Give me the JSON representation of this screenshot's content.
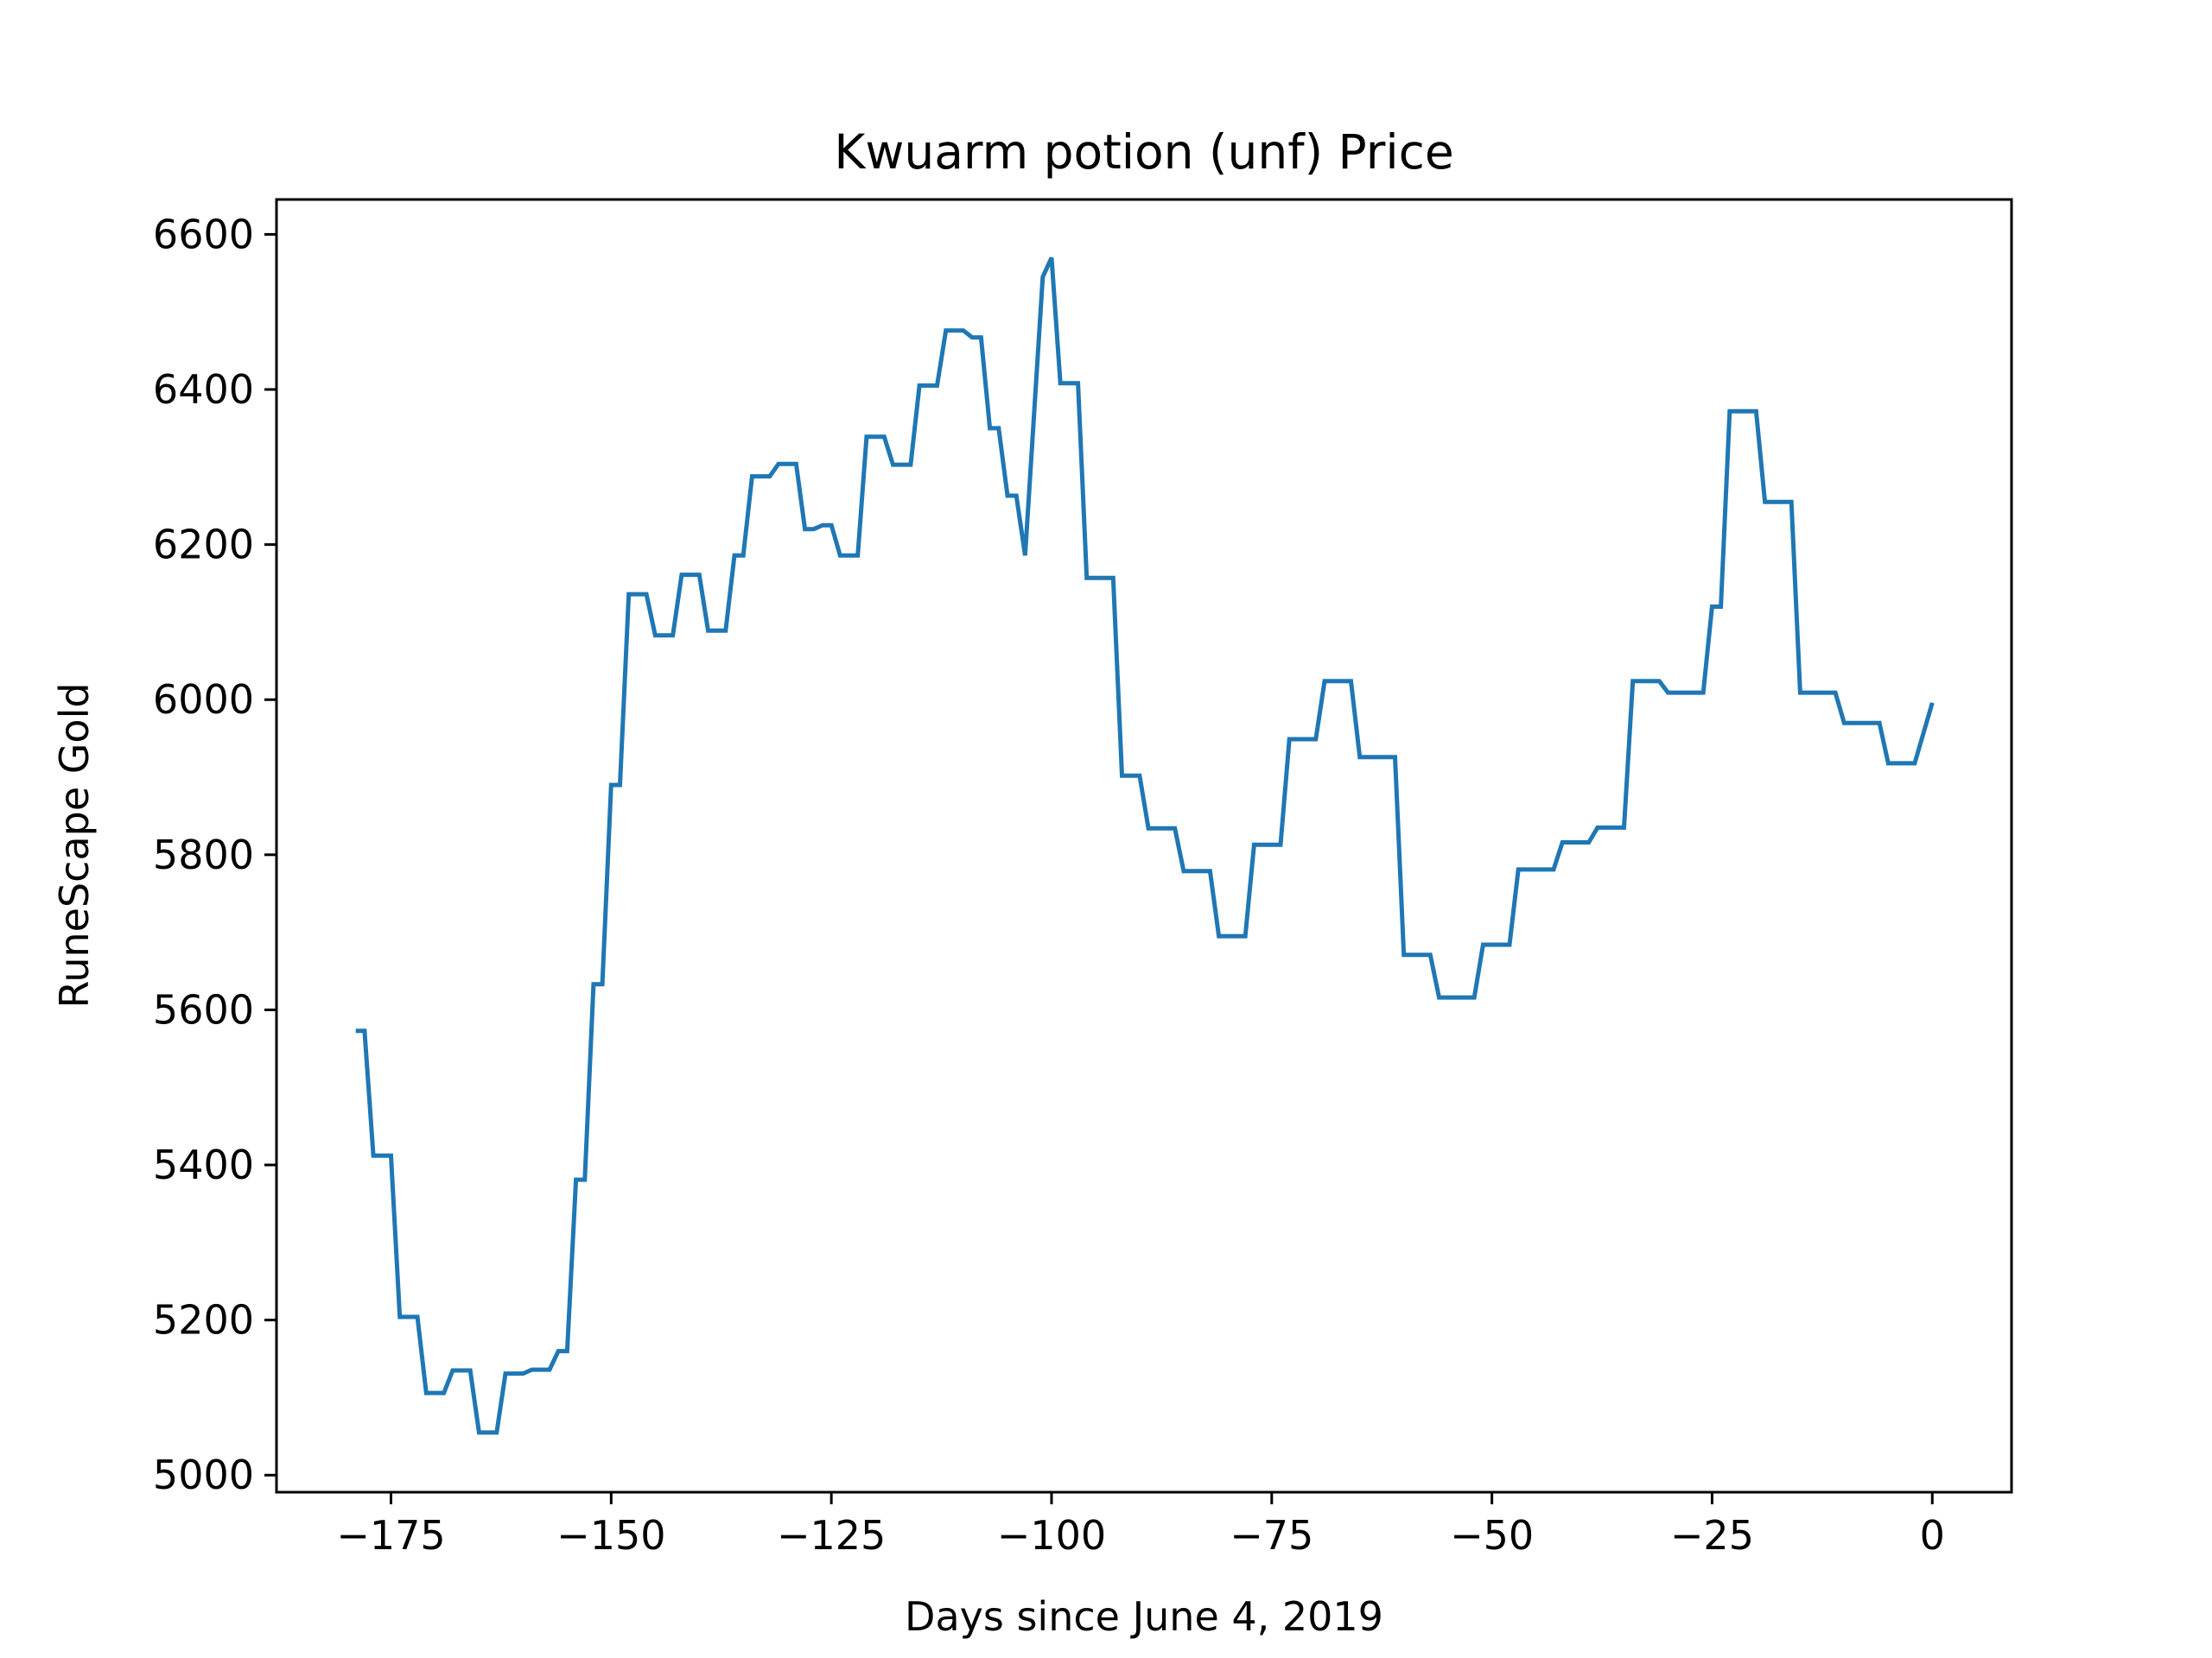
{
  "chart_data": {
    "type": "line",
    "title": "Kwuarm potion (unf) Price",
    "xlabel": "Days since June 4, 2019",
    "ylabel": "RuneScape Gold",
    "xlim": [
      -188,
      9
    ],
    "ylim": [
      4978,
      6645
    ],
    "xticks": [
      -175,
      -150,
      -125,
      -100,
      -75,
      -50,
      -25,
      0
    ],
    "xtick_labels": [
      "−175",
      "−150",
      "−125",
      "−100",
      "−75",
      "−50",
      "−25",
      "0"
    ],
    "yticks": [
      5000,
      5200,
      5400,
      5600,
      5800,
      6000,
      6200,
      6400,
      6600
    ],
    "ytick_labels": [
      "5000",
      "5200",
      "5400",
      "5600",
      "5800",
      "6000",
      "6200",
      "6400",
      "6600"
    ],
    "grid": false,
    "series": [
      {
        "name": "Kwuarm potion (unf)",
        "color": "#1f77b4",
        "points": [
          [
            -179,
            5573
          ],
          [
            -178,
            5573
          ],
          [
            -177,
            5412
          ],
          [
            -175,
            5412
          ],
          [
            -174,
            5204
          ],
          [
            -172,
            5204
          ],
          [
            -171,
            5106
          ],
          [
            -169,
            5106
          ],
          [
            -168,
            5135
          ],
          [
            -166,
            5135
          ],
          [
            -165,
            5055
          ],
          [
            -163,
            5055
          ],
          [
            -162,
            5131
          ],
          [
            -160,
            5131
          ],
          [
            -159,
            5136
          ],
          [
            -157,
            5136
          ],
          [
            -156,
            5160
          ],
          [
            -155,
            5160
          ],
          [
            -154,
            5381
          ],
          [
            -153,
            5381
          ],
          [
            -152,
            5633
          ],
          [
            -151,
            5633
          ],
          [
            -150,
            5890
          ],
          [
            -149,
            5890
          ],
          [
            -148,
            6136
          ],
          [
            -146,
            6136
          ],
          [
            -145,
            6083
          ],
          [
            -143,
            6083
          ],
          [
            -142,
            6161
          ],
          [
            -140,
            6161
          ],
          [
            -139,
            6089
          ],
          [
            -137,
            6089
          ],
          [
            -136,
            6186
          ],
          [
            -135,
            6186
          ],
          [
            -134,
            6288
          ],
          [
            -132,
            6288
          ],
          [
            -131,
            6304
          ],
          [
            -129,
            6304
          ],
          [
            -128,
            6220
          ],
          [
            -127,
            6220
          ],
          [
            -126,
            6225
          ],
          [
            -125,
            6225
          ],
          [
            -124,
            6186
          ],
          [
            -122,
            6186
          ],
          [
            -121,
            6339
          ],
          [
            -119,
            6339
          ],
          [
            -118,
            6303
          ],
          [
            -116,
            6303
          ],
          [
            -115,
            6405
          ],
          [
            -113,
            6405
          ],
          [
            -112,
            6476
          ],
          [
            -110,
            6476
          ],
          [
            -109,
            6467
          ],
          [
            -108,
            6467
          ],
          [
            -107,
            6350
          ],
          [
            -106,
            6350
          ],
          [
            -105,
            6263
          ],
          [
            -104,
            6263
          ],
          [
            -103,
            6186
          ],
          [
            -101,
            6545
          ],
          [
            -100,
            6570
          ],
          [
            -99,
            6408
          ],
          [
            -97,
            6408
          ],
          [
            -96,
            6157
          ],
          [
            -93,
            6157
          ],
          [
            -92,
            5902
          ],
          [
            -90,
            5902
          ],
          [
            -89,
            5834
          ],
          [
            -86,
            5834
          ],
          [
            -85,
            5779
          ],
          [
            -82,
            5779
          ],
          [
            -81,
            5695
          ],
          [
            -78,
            5695
          ],
          [
            -77,
            5813
          ],
          [
            -74,
            5813
          ],
          [
            -73,
            5949
          ],
          [
            -70,
            5949
          ],
          [
            -69,
            6024
          ],
          [
            -66,
            6024
          ],
          [
            -65,
            5926
          ],
          [
            -61,
            5926
          ],
          [
            -60,
            5671
          ],
          [
            -57,
            5671
          ],
          [
            -56,
            5616
          ],
          [
            -52,
            5616
          ],
          [
            -51,
            5684
          ],
          [
            -48,
            5684
          ],
          [
            -47,
            5781
          ],
          [
            -43,
            5781
          ],
          [
            -42,
            5816
          ],
          [
            -39,
            5816
          ],
          [
            -38,
            5835
          ],
          [
            -35,
            5835
          ],
          [
            -34,
            6024
          ],
          [
            -31,
            6024
          ],
          [
            -30,
            6009
          ],
          [
            -26,
            6009
          ],
          [
            -25,
            6120
          ],
          [
            -24,
            6120
          ],
          [
            -23,
            6372
          ],
          [
            -20,
            6372
          ],
          [
            -19,
            6255
          ],
          [
            -16,
            6255
          ],
          [
            -15,
            6009
          ],
          [
            -11,
            6009
          ],
          [
            -10,
            5970
          ],
          [
            -6,
            5970
          ],
          [
            -5,
            5918
          ],
          [
            -2,
            5918
          ],
          [
            0,
            5996
          ]
        ]
      }
    ]
  }
}
